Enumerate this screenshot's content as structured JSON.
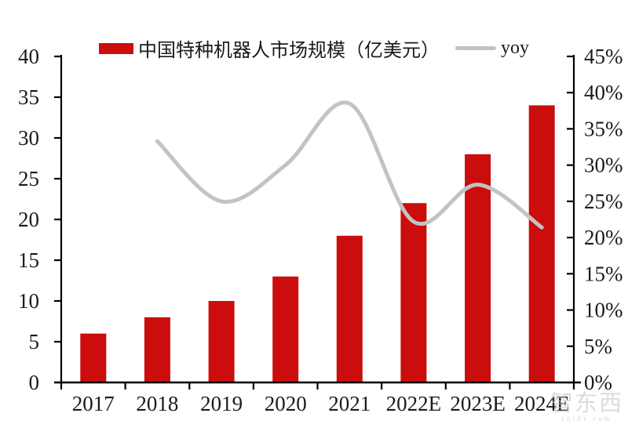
{
  "watermark": {
    "text": "智东西",
    "url": "zhidx.com"
  },
  "chart_data": {
    "type": "bar",
    "title": "",
    "categories": [
      "2017",
      "2018",
      "2019",
      "2020",
      "2021",
      "2022E",
      "2023E",
      "2024E"
    ],
    "series": [
      {
        "name": "中国特种机器人市场规模（亿美元）",
        "kind": "bar",
        "axis": "left",
        "color": "#cb0d0d",
        "values": [
          6,
          8,
          10,
          13,
          18,
          22,
          28,
          34
        ]
      },
      {
        "name": "yoy",
        "kind": "line",
        "axis": "right",
        "color": "#c3c3c3",
        "unit": "%",
        "values": [
          null,
          33.3,
          25.0,
          30.0,
          38.5,
          22.2,
          27.3,
          21.4
        ]
      }
    ],
    "left_axis": {
      "min": 0,
      "max": 40,
      "step": 5,
      "tick_labels": [
        "0",
        "5",
        "10",
        "15",
        "20",
        "25",
        "30",
        "35",
        "40"
      ]
    },
    "right_axis": {
      "min": 0,
      "max": 45,
      "step": 5,
      "tick_labels": [
        "0%",
        "5%",
        "10%",
        "15%",
        "20%",
        "25%",
        "30%",
        "35%",
        "40%",
        "45%"
      ]
    },
    "legend_position": "top",
    "grid": false
  }
}
